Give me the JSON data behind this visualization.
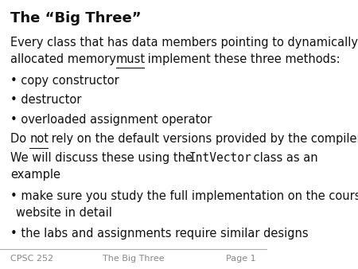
{
  "title": "The “Big Three”",
  "background_color": "#ffffff",
  "footer_left": "CPSC 252",
  "footer_center": "The Big Three",
  "footer_right": "Page 1",
  "footer_color": "#888888",
  "footer_line_color": "#aaaaaa",
  "text_color": "#111111",
  "font_family": "DejaVu Sans",
  "mono_font": "DejaVu Sans Mono",
  "body_fontsize": 10.5,
  "title_fontsize": 13,
  "footer_fontsize": 8
}
